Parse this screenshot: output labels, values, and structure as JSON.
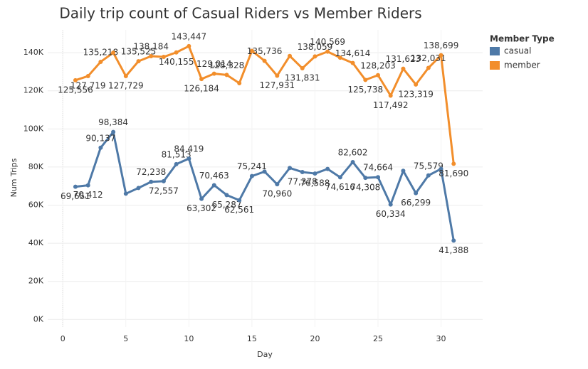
{
  "chart_data": {
    "type": "line",
    "title": "Daily trip count of Casual Riders vs Member Riders",
    "x_label": "Day",
    "y_label": "Num Trips",
    "x": [
      1,
      2,
      3,
      4,
      5,
      6,
      7,
      8,
      9,
      10,
      11,
      12,
      13,
      14,
      15,
      16,
      17,
      18,
      19,
      20,
      21,
      22,
      23,
      24,
      25,
      26,
      27,
      28,
      29,
      30,
      31
    ],
    "series": [
      {
        "name": "casual",
        "color": "#4e79a7",
        "values": [
          69651,
          70412,
          90137,
          98384,
          66000,
          69000,
          72238,
          72557,
          81513,
          84419,
          63302,
          70463,
          65287,
          62561,
          75241,
          77600,
          70960,
          79500,
          77378,
          76588,
          79000,
          74616,
          82602,
          74308,
          74664,
          60334,
          78000,
          66299,
          75579,
          79000,
          41388
        ],
        "value_labels": [
          "69,651",
          "70,412",
          "90,137",
          "98,384",
          null,
          null,
          "72,238",
          "72,557",
          "81,513",
          "84,419",
          "63,302",
          "70,463",
          "65,287",
          "62,561",
          "75,241",
          null,
          "70,960",
          null,
          "77,378",
          "76,588",
          null,
          "74,616",
          "82,602",
          "74,308",
          "74,664",
          "60,334",
          null,
          "66,299",
          "75,579",
          null,
          "41,388"
        ]
      },
      {
        "name": "member",
        "color": "#f28e2b",
        "values": [
          125556,
          127719,
          135218,
          140000,
          127729,
          135525,
          138184,
          137800,
          140155,
          143447,
          126184,
          129014,
          128328,
          124000,
          141000,
          135736,
          127931,
          138300,
          131831,
          138059,
          140569,
          137400,
          134614,
          125738,
          128203,
          117492,
          131623,
          123319,
          132031,
          138699,
          81690
        ],
        "value_labels": [
          "125,556",
          "127,719",
          "135,218",
          null,
          "127,729",
          "135,525",
          "138,184",
          null,
          "140,155",
          "143,447",
          "126,184",
          "129,014",
          "128,328",
          null,
          null,
          "135,736",
          "127,931",
          null,
          "131,831",
          "138,059",
          "140,569",
          null,
          "134,614",
          "125,738",
          "128,203",
          "117,492",
          "131,623",
          "123,319",
          "132,031",
          "138,699",
          "81,690"
        ]
      }
    ],
    "xlim": [
      -1.2,
      33.3
    ],
    "xticks": [
      0,
      5,
      10,
      15,
      20,
      25,
      30
    ],
    "ylim": [
      -4000,
      152000
    ],
    "yticks": [
      {
        "value": 0,
        "label": "0K"
      },
      {
        "value": 20000,
        "label": "20K"
      },
      {
        "value": 40000,
        "label": "40K"
      },
      {
        "value": 60000,
        "label": "60K"
      },
      {
        "value": 80000,
        "label": "80K"
      },
      {
        "value": 100000,
        "label": "100K"
      },
      {
        "value": 120000,
        "label": "120K"
      },
      {
        "value": 140000,
        "label": "140K"
      }
    ],
    "grid": true,
    "legend_title": "Member Type",
    "legend_position": "right"
  }
}
